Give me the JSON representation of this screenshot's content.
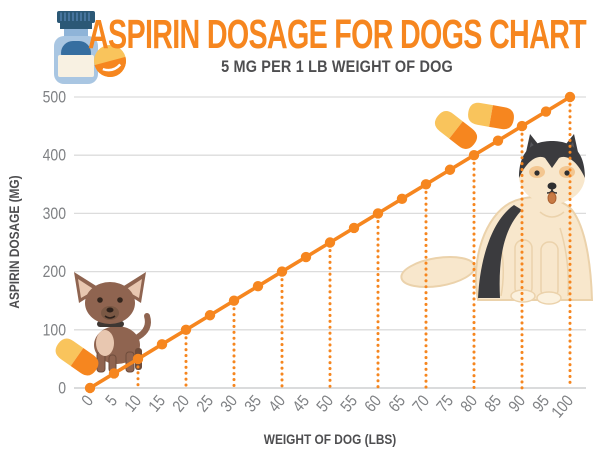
{
  "page": {
    "background": "#FFFFFF"
  },
  "header": {
    "title": "ASPIRIN DOSAGE FOR DOGS CHART",
    "subtitle": "5 MG PER 1 LB WEIGHT OF DOG"
  },
  "icons": {
    "medicine-bottle-icon": "blue pill bottle with blank label",
    "round-pill-icon": "two-tone round tablet (yellow/orange)",
    "capsule-pill-icon": "two-tone capsule (yellow/orange)",
    "chihuahua-illustration": "small brown chihuahua dog",
    "husky-illustration": "large cream and black husky dog"
  },
  "colors": {
    "accent": "#F6861F",
    "pill_yellow": "#F9C45C",
    "title_text": "#F6861F",
    "dark_text": "#4E4E50",
    "tick_text": "#7F8184",
    "gridline": "#DCDCDC",
    "axis_line": "#C4C5C7",
    "bottle_light_blue": "#A9C6E2",
    "bottle_dark_blue": "#2B5876"
  },
  "chart_data": {
    "type": "line",
    "title": "ASPIRIN DOSAGE FOR DOGS CHART",
    "subtitle": "5 MG PER 1 LB WEIGHT OF DOG",
    "xlabel": "WEIGHT OF DOG (LBS)",
    "ylabel": "ASPIRIN DOSAGE (MG)",
    "x": [
      0,
      5,
      10,
      15,
      20,
      25,
      30,
      35,
      40,
      45,
      50,
      55,
      60,
      65,
      70,
      75,
      80,
      85,
      90,
      95,
      100
    ],
    "series": [
      {
        "name": "Aspirin dosage (mg)",
        "values": [
          0,
          25,
          50,
          75,
          100,
          125,
          150,
          175,
          200,
          225,
          250,
          275,
          300,
          325,
          350,
          375,
          400,
          425,
          450,
          475,
          500
        ]
      }
    ],
    "xlim": [
      0,
      100
    ],
    "ylim": [
      0,
      500
    ],
    "xticks": [
      0,
      5,
      10,
      15,
      20,
      25,
      30,
      35,
      40,
      45,
      50,
      55,
      60,
      65,
      70,
      75,
      80,
      85,
      90,
      95,
      100
    ],
    "yticks": [
      0,
      100,
      200,
      300,
      400,
      500
    ],
    "guide_lines_x": [
      10,
      20,
      30,
      40,
      50,
      60,
      70,
      80,
      90,
      100
    ],
    "grid": "horizontal",
    "legend": "none",
    "marker": "circle",
    "line_color": "#F6861F"
  }
}
